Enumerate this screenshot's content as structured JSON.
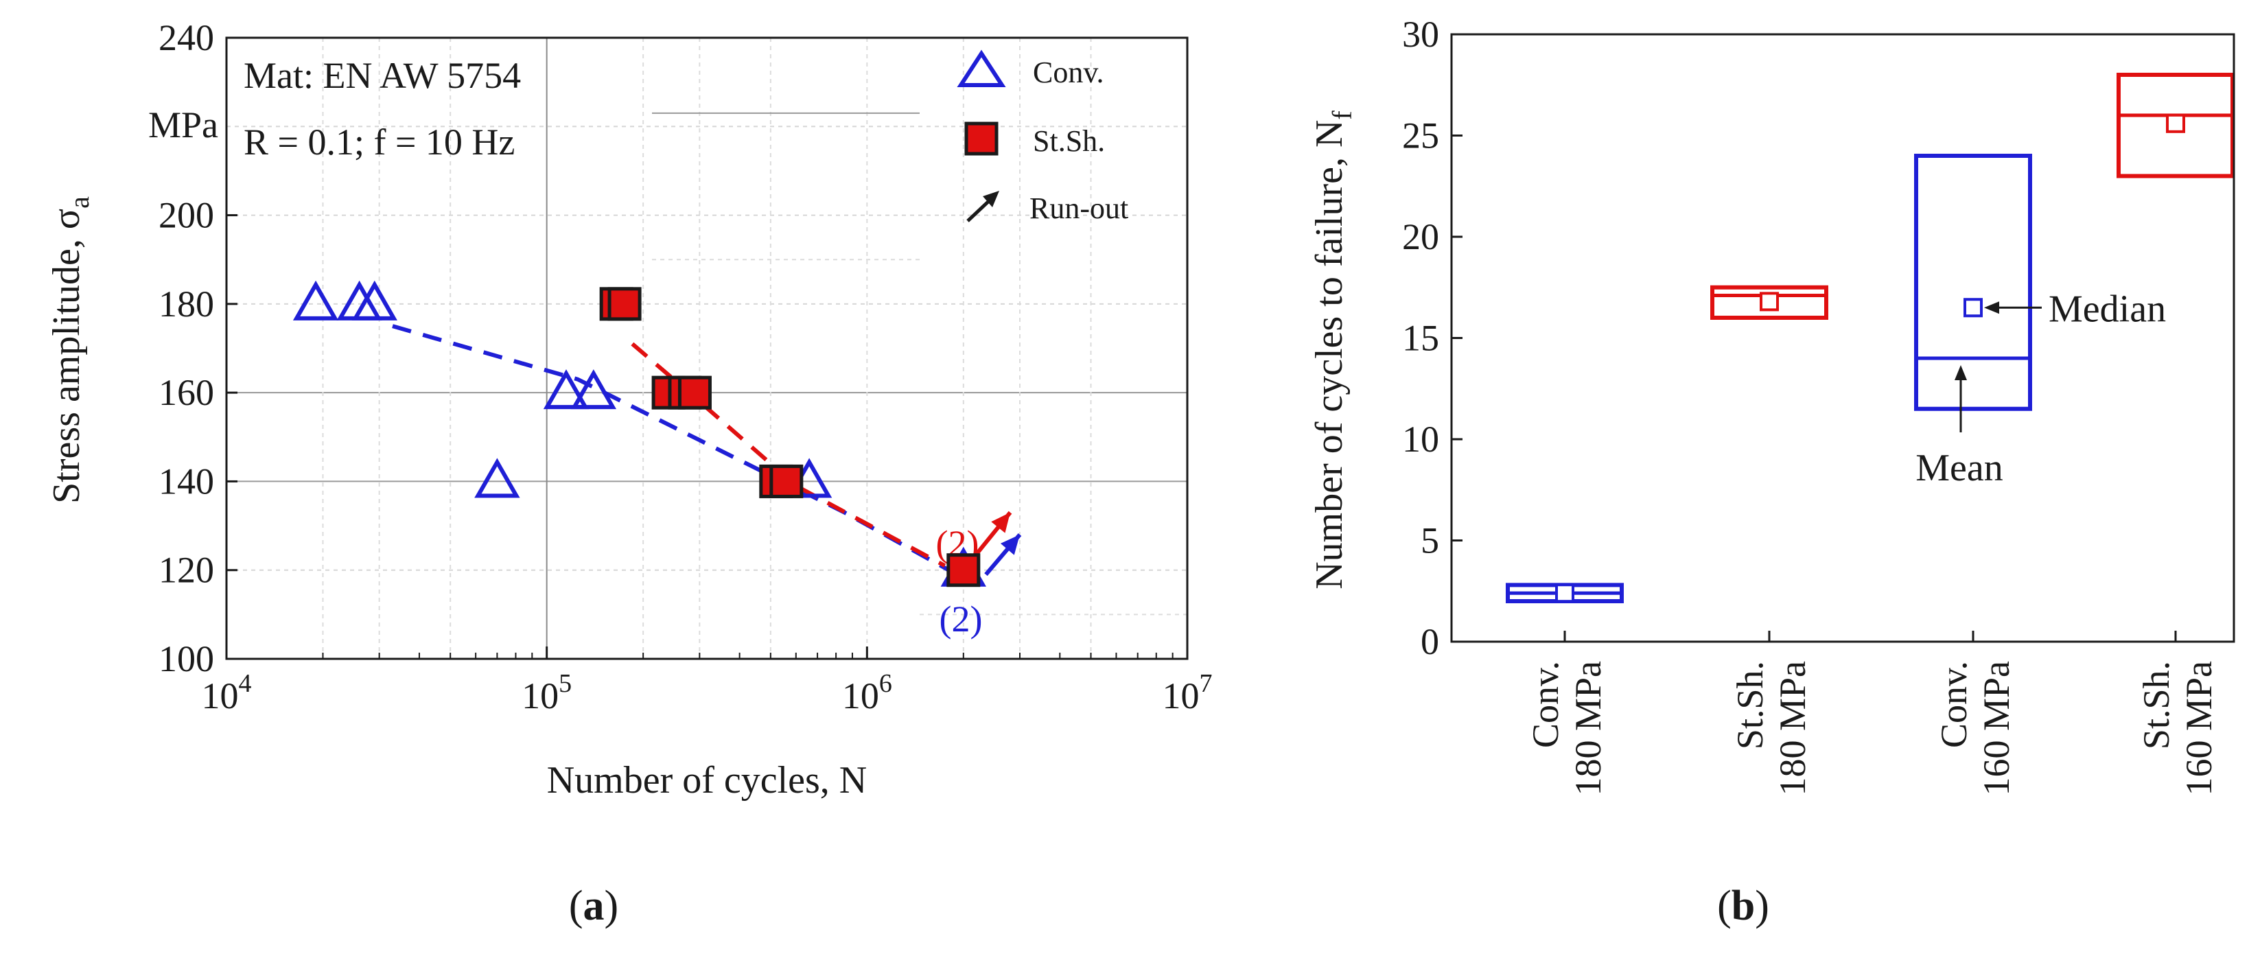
{
  "chart_data": [
    {
      "panel": "a",
      "type": "scatter",
      "xscale": "log",
      "xlim": [
        10000,
        10000000
      ],
      "ylim": [
        100,
        240
      ],
      "xlabel": "Number of cycles, N",
      "ylabel": "Stress amplitude, σ",
      "ylabel_sub": "a",
      "y_unit": "MPa",
      "x_tick_exponents": [
        "4",
        "5",
        "6",
        "7"
      ],
      "x_tick_base": "10",
      "y_ticks": [
        100,
        120,
        140,
        160,
        180,
        200,
        240
      ],
      "annotation_lines": [
        "Mat: EN AW 5754",
        "R = 0.1; f = 10 Hz"
      ],
      "legend": [
        {
          "key": "conv",
          "label": "Conv."
        },
        {
          "key": "stsh",
          "label": "St.Sh."
        },
        {
          "key": "runout",
          "label": "Run-out"
        }
      ],
      "colors": {
        "conv": "#1f1fd6",
        "stsh": "#e01010"
      },
      "series": [
        {
          "key": "conv",
          "name": "Conv.",
          "marker": "triangle",
          "points": [
            [
              19000,
              180
            ],
            [
              26000,
              180
            ],
            [
              29000,
              180
            ],
            [
              115000,
              160
            ],
            [
              140000,
              160
            ],
            [
              70000,
              140
            ],
            [
              660000,
              140
            ],
            [
              2000000,
              120
            ]
          ],
          "trend": [
            [
              33000,
              175
            ],
            [
              125000,
              163
            ],
            [
              850000,
              133
            ],
            [
              1800000,
              120
            ]
          ]
        },
        {
          "key": "stsh",
          "name": "St.Sh.",
          "marker": "square",
          "points": [
            [
              165000,
              180
            ],
            [
              175000,
              180
            ],
            [
              240000,
              160
            ],
            [
              270000,
              160
            ],
            [
              290000,
              160
            ],
            [
              520000,
              140
            ],
            [
              560000,
              140
            ],
            [
              2000000,
              120
            ]
          ],
          "trend": [
            [
              185000,
              171
            ],
            [
              300000,
              158
            ],
            [
              600000,
              139
            ],
            [
              1750000,
              121
            ]
          ]
        }
      ],
      "runout_arrows": [
        {
          "series": "stsh",
          "from": [
            2000000,
            120
          ],
          "to": [
            2800000,
            133
          ],
          "count_label": "(2)"
        },
        {
          "series": "conv",
          "from": [
            2350000,
            119
          ],
          "to": [
            3000000,
            128
          ],
          "count_label": "(2)"
        }
      ],
      "panel_label": "a"
    },
    {
      "panel": "b",
      "type": "box",
      "ylim": [
        0,
        30
      ],
      "ylabel": "Number of cycles to failure, N",
      "ylabel_sub": "f",
      "y_ticks": [
        0,
        5,
        10,
        15,
        20,
        25,
        30
      ],
      "categories": [
        {
          "line1": "Conv.",
          "line2": "180 MPa",
          "color": "conv",
          "q1": 2,
          "q3": 2.8,
          "line": 2.4,
          "marker": 2.4
        },
        {
          "line1": "St.Sh.",
          "line2": "180 MPa",
          "color": "stsh",
          "q1": 16,
          "q3": 17.5,
          "line": 17.1,
          "marker": 16.8
        },
        {
          "line1": "Conv.",
          "line2": "160 MPa",
          "color": "conv",
          "q1": 11.5,
          "q3": 24,
          "line": 14,
          "marker": 16.5
        },
        {
          "line1": "St.Sh.",
          "line2": "160 MPa",
          "color": "stsh",
          "q1": 23,
          "q3": 28,
          "line": 26,
          "marker": 25.6
        }
      ],
      "annotations": [
        {
          "text": "Median",
          "points_to": "marker",
          "category": 2
        },
        {
          "text": "Mean",
          "points_to": "line",
          "category": 2
        }
      ],
      "colors": {
        "conv": "#1f1fd6",
        "stsh": "#e01010"
      },
      "panel_label": "b"
    }
  ]
}
